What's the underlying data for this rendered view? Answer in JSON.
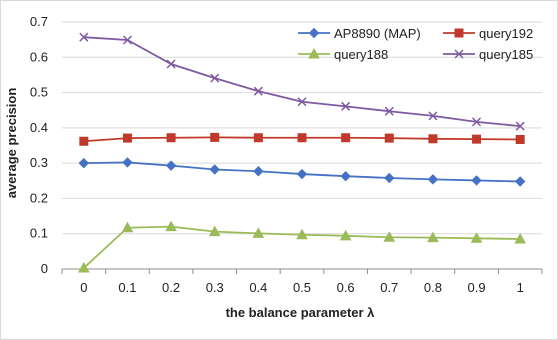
{
  "chart_data": {
    "type": "line",
    "title": "",
    "xlabel": "the balance parameter λ",
    "ylabel": "average precision",
    "x": [
      0,
      0.1,
      0.2,
      0.3,
      0.4,
      0.5,
      0.6,
      0.7,
      0.8,
      0.9,
      1
    ],
    "x_tick_labels": [
      "0",
      "0.1",
      "0.2",
      "0.3",
      "0.4",
      "0.5",
      "0.6",
      "0.7",
      "0.8",
      "0.9",
      "1"
    ],
    "ylim": [
      0,
      0.7
    ],
    "y_ticks": [
      0,
      0.1,
      0.2,
      0.3,
      0.4,
      0.5,
      0.6,
      0.7
    ],
    "y_tick_labels": [
      "0",
      "0.1",
      "0.2",
      "0.3",
      "0.4",
      "0.5",
      "0.6",
      "0.7"
    ],
    "grid": "horizontal",
    "legend_position": "top-right",
    "series": [
      {
        "name": "AP8890 (MAP)",
        "color": "#4572c4",
        "marker": "diamond",
        "values": [
          0.3,
          0.302,
          0.293,
          0.282,
          0.277,
          0.269,
          0.263,
          0.258,
          0.254,
          0.251,
          0.248
        ]
      },
      {
        "name": "query192",
        "color": "#c0392b",
        "marker": "square",
        "values": [
          0.362,
          0.371,
          0.372,
          0.373,
          0.372,
          0.372,
          0.372,
          0.371,
          0.369,
          0.368,
          0.367
        ]
      },
      {
        "name": "query188",
        "color": "#9bbb59",
        "marker": "triangle",
        "values": [
          0.003,
          0.117,
          0.12,
          0.106,
          0.101,
          0.097,
          0.094,
          0.09,
          0.089,
          0.087,
          0.085
        ]
      },
      {
        "name": "query185",
        "color": "#7e5aa2",
        "marker": "x",
        "values": [
          0.657,
          0.649,
          0.581,
          0.541,
          0.504,
          0.474,
          0.461,
          0.447,
          0.434,
          0.417,
          0.405
        ]
      }
    ]
  }
}
